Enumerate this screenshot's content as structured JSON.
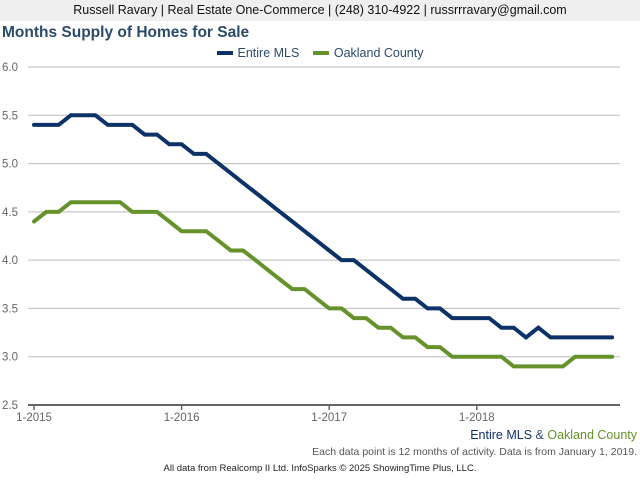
{
  "header": {
    "contact": "Russell Ravary | Real Estate One-Commerce | (248) 310-4922 | russrrravary@gmail.com"
  },
  "colors": {
    "entire_mls": "#0d3268",
    "oakland": "#65922a",
    "grid": "#bbbbbb",
    "axis": "#666666"
  },
  "chart_data": {
    "type": "line",
    "title": "Months Supply of Homes for Sale",
    "xlabel": "",
    "ylabel": "",
    "ylim": [
      2.5,
      6.0
    ],
    "yticks": [
      "2.5",
      "3.0",
      "3.5",
      "4.0",
      "4.5",
      "5.0",
      "5.5",
      "6.0"
    ],
    "xticks": [
      "1-2015",
      "1-2016",
      "1-2017",
      "1-2018"
    ],
    "x_start": "1-2015",
    "x_end": "12-2018",
    "grid": true,
    "legend_position": "top-center",
    "series": [
      {
        "name": "Entire MLS",
        "values": [
          5.4,
          5.4,
          5.4,
          5.5,
          5.5,
          5.5,
          5.4,
          5.4,
          5.4,
          5.3,
          5.3,
          5.2,
          5.2,
          5.1,
          5.1,
          5.0,
          4.9,
          4.8,
          4.7,
          4.6,
          4.5,
          4.4,
          4.3,
          4.2,
          4.1,
          4.0,
          4.0,
          3.9,
          3.8,
          3.7,
          3.6,
          3.6,
          3.5,
          3.5,
          3.4,
          3.4,
          3.4,
          3.4,
          3.3,
          3.3,
          3.2,
          3.3,
          3.2,
          3.2,
          3.2,
          3.2,
          3.2,
          3.2
        ]
      },
      {
        "name": "Oakland County",
        "values": [
          4.4,
          4.5,
          4.5,
          4.6,
          4.6,
          4.6,
          4.6,
          4.6,
          4.5,
          4.5,
          4.5,
          4.4,
          4.3,
          4.3,
          4.3,
          4.2,
          4.1,
          4.1,
          4.0,
          3.9,
          3.8,
          3.7,
          3.7,
          3.6,
          3.5,
          3.5,
          3.4,
          3.4,
          3.3,
          3.3,
          3.2,
          3.2,
          3.1,
          3.1,
          3.0,
          3.0,
          3.0,
          3.0,
          3.0,
          2.9,
          2.9,
          2.9,
          2.9,
          2.9,
          3.0,
          3.0,
          3.0,
          3.0
        ]
      }
    ]
  },
  "footer": {
    "series_a": "Entire MLS",
    "amp": " & ",
    "series_b": "Oakland County",
    "note": "Each data point is 12 months of activity. Data is from January 1, 2019.",
    "source": "All data from Realcomp II Ltd. InfoSparks © 2025 ShowingTime Plus, LLC."
  }
}
